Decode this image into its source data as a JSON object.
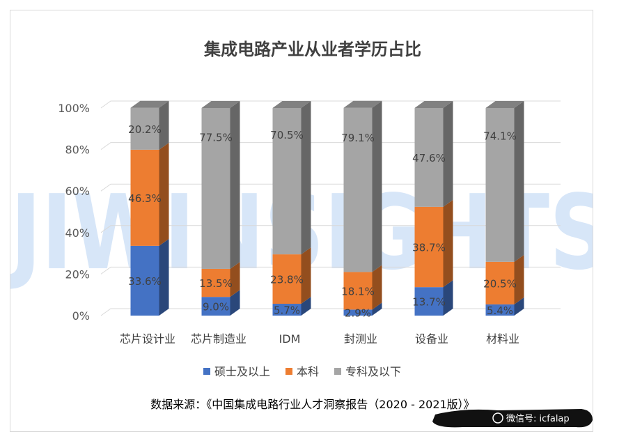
{
  "chart_data": {
    "type": "bar",
    "stacked": true,
    "percent": true,
    "title": "集成电路产业从业者学历占比",
    "categories": [
      "芯片设计业",
      "芯片制造业",
      "IDM",
      "封测业",
      "设备业",
      "材料业"
    ],
    "series": [
      {
        "name": "硕士及以上",
        "color": "#4472c4",
        "values": [
          33.6,
          9.0,
          5.7,
          2.9,
          13.7,
          5.4
        ],
        "labels": [
          "33.6%",
          "9.0%",
          "5.7%",
          "2.9%",
          "13.7%",
          "5.4%"
        ]
      },
      {
        "name": "本科",
        "color": "#ed7d31",
        "values": [
          46.3,
          13.5,
          23.8,
          18.1,
          38.7,
          20.5
        ],
        "labels": [
          "46.3%",
          "13.5%",
          "23.8%",
          "18.1%",
          "38.7%",
          "20.5%"
        ]
      },
      {
        "name": "专科及以下",
        "color": "#a5a5a5",
        "values": [
          20.2,
          77.5,
          70.5,
          79.1,
          47.6,
          74.1
        ],
        "labels": [
          "20.2%",
          "77.5%",
          "70.5%",
          "79.1%",
          "47.6%",
          "74.1%"
        ]
      }
    ],
    "y_ticks": [
      "0%",
      "20%",
      "40%",
      "60%",
      "80%",
      "100%"
    ],
    "ylim": [
      0,
      100
    ],
    "grid": true,
    "legend_position": "bottom"
  },
  "source_note": "数据来源：《中国集成电路行业人才洞察报告（2020 - 2021版）》",
  "watermark_text": "JIWINSIGHTS",
  "wechat_label": "微信号: icfalap"
}
